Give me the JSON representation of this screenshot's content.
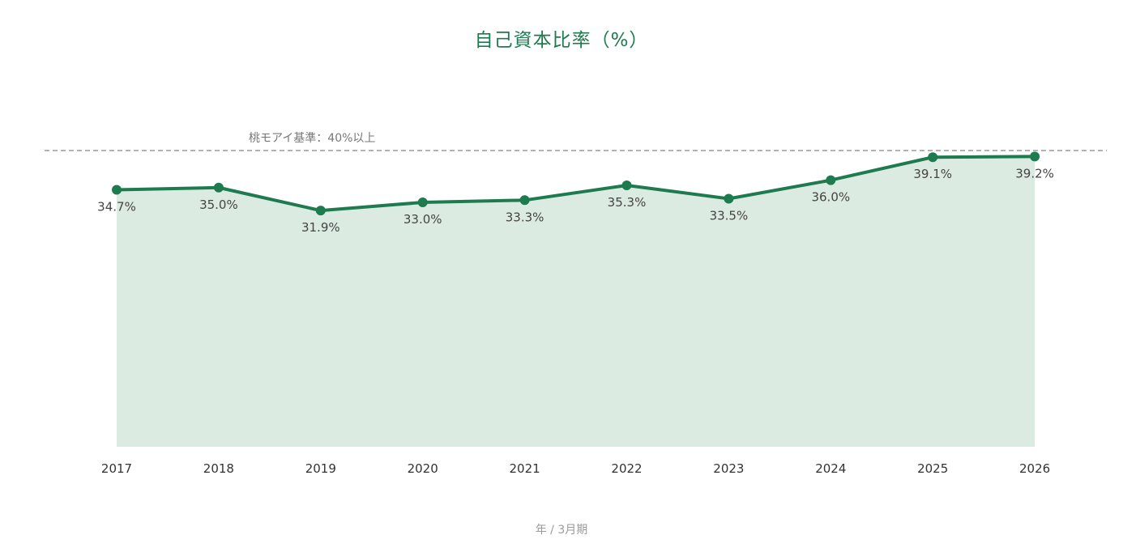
{
  "chart_data": {
    "type": "area",
    "title": "自己資本比率（%）",
    "xlabel": "年 / 3月期",
    "ylabel": "",
    "categories": [
      "2017",
      "2018",
      "2019",
      "2020",
      "2021",
      "2022",
      "2023",
      "2024",
      "2025",
      "2026"
    ],
    "series": [
      {
        "values": [
          34.7,
          35.0,
          31.9,
          33.0,
          33.3,
          35.3,
          33.5,
          36.0,
          39.1,
          39.2
        ]
      }
    ],
    "data_labels": [
      "34.7%",
      "35.0%",
      "31.9%",
      "33.0%",
      "33.3%",
      "35.3%",
      "33.5%",
      "36.0%",
      "39.1%",
      "39.2%"
    ],
    "reference_line": {
      "value": 40,
      "label": "桃モアイ基準：40%以上",
      "style": "dashed"
    },
    "ylim": [
      0,
      40
    ],
    "grid": false,
    "legend": "none",
    "colors": {
      "line": "#1e7a4f",
      "fill": "#dcebe2",
      "reference": "#999999",
      "text": "#444444"
    }
  }
}
